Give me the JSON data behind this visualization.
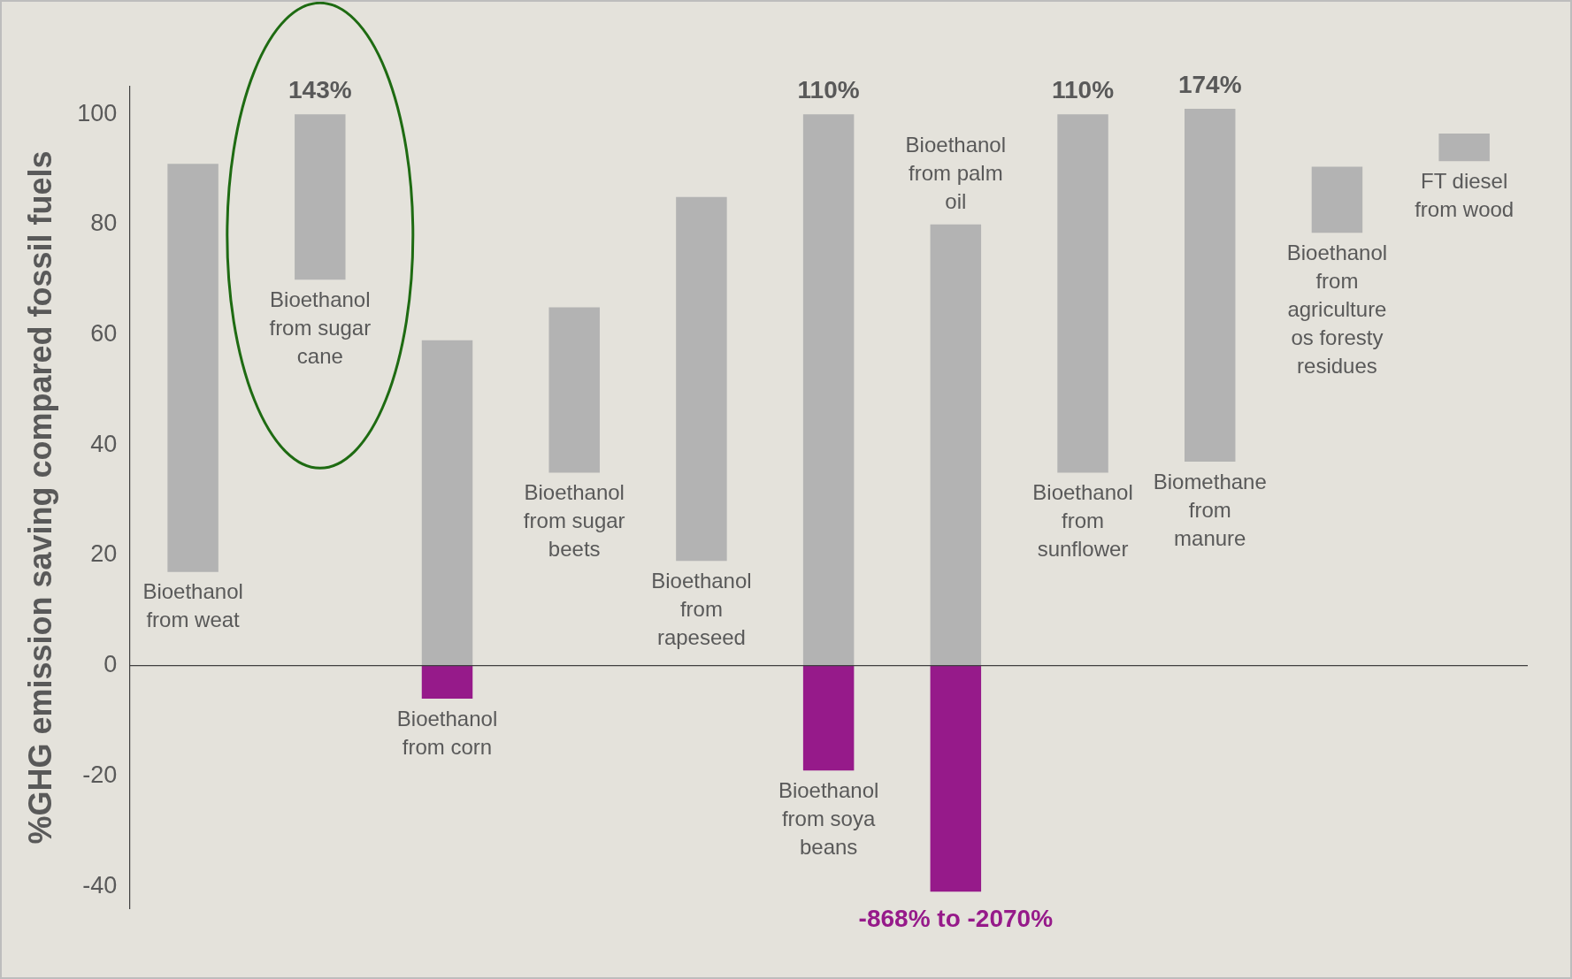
{
  "chart_data": {
    "type": "bar",
    "ylabel": "%GHG emission saving compared fossil fuels",
    "categories": [
      "Bioethanol from weat",
      "Bioethanol from sugar cane",
      "Bioethanol from corn",
      "Bioethanol from sugar beets",
      "Bioethanol from rapeseed",
      "Bioethanol from soya beans",
      "Bioethanol from palm oil",
      "Bioethanol from sunflower",
      "Biomethane from manure",
      "Bioethanol from agriculture os foresty residues",
      "FT diesel from wood"
    ],
    "series": [
      {
        "color": "#b3b3b3",
        "base": [
          17,
          70,
          0,
          35,
          19,
          0,
          0,
          35,
          37,
          78.5,
          91.5
        ],
        "values": [
          74,
          30,
          59,
          30,
          66,
          100,
          80,
          65,
          64,
          12,
          5
        ]
      },
      {
        "color": "#961a8a",
        "base": [
          null,
          null,
          -6,
          null,
          null,
          -19,
          -41,
          null,
          null,
          null,
          null
        ],
        "values": [
          null,
          null,
          6,
          null,
          null,
          19,
          41,
          null,
          null,
          null,
          null
        ]
      }
    ],
    "ylim": [
      -44,
      105
    ],
    "yticks": [
      -40,
      -20,
      0,
      20,
      40,
      60,
      80,
      100
    ],
    "tick_labels": "y",
    "annotations": [
      {
        "text": "143%",
        "x": "Bioethanol from sugar cane",
        "y": 100
      },
      {
        "text": "110%",
        "x": "Bioethanol from soya beans",
        "y": 100
      },
      {
        "text": "110%",
        "x": "Bioethanol from sunflower",
        "y": 100
      },
      {
        "text": "174%",
        "x": "Biomethane from manure",
        "y": 101
      },
      {
        "text": "-868% to -2070%",
        "x": "Bioethanol from palm oil",
        "y": -41
      }
    ]
  }
}
